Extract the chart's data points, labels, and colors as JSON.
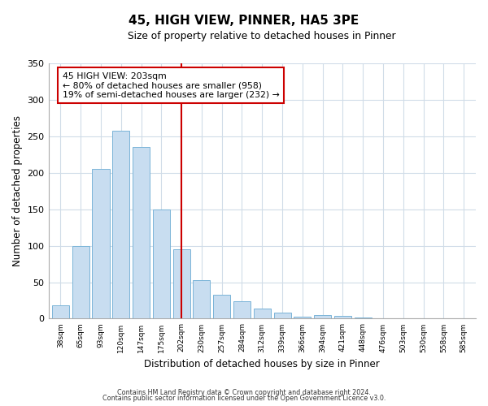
{
  "title": "45, HIGH VIEW, PINNER, HA5 3PE",
  "subtitle": "Size of property relative to detached houses in Pinner",
  "xlabel": "Distribution of detached houses by size in Pinner",
  "ylabel": "Number of detached properties",
  "bar_labels": [
    "38sqm",
    "65sqm",
    "93sqm",
    "120sqm",
    "147sqm",
    "175sqm",
    "202sqm",
    "230sqm",
    "257sqm",
    "284sqm",
    "312sqm",
    "339sqm",
    "366sqm",
    "394sqm",
    "421sqm",
    "448sqm",
    "476sqm",
    "503sqm",
    "530sqm",
    "558sqm",
    "585sqm"
  ],
  "bar_values": [
    18,
    100,
    205,
    258,
    235,
    150,
    95,
    53,
    33,
    24,
    14,
    8,
    3,
    5,
    4,
    2,
    0,
    0,
    0,
    0,
    1
  ],
  "bar_color": "#c8ddf0",
  "bar_edge_color": "#7ab4d8",
  "vline_x_index": 6,
  "vline_color": "#cc0000",
  "ylim": [
    0,
    350
  ],
  "yticks": [
    0,
    50,
    100,
    150,
    200,
    250,
    300,
    350
  ],
  "annotation_title": "45 HIGH VIEW: 203sqm",
  "annotation_line1": "← 80% of detached houses are smaller (958)",
  "annotation_line2": "19% of semi-detached houses are larger (232) →",
  "annotation_box_edge": "#cc0000",
  "footer1": "Contains HM Land Registry data © Crown copyright and database right 2024.",
  "footer2": "Contains public sector information licensed under the Open Government Licence v3.0.",
  "bg_color": "#ffffff",
  "grid_color": "#d0dce8"
}
